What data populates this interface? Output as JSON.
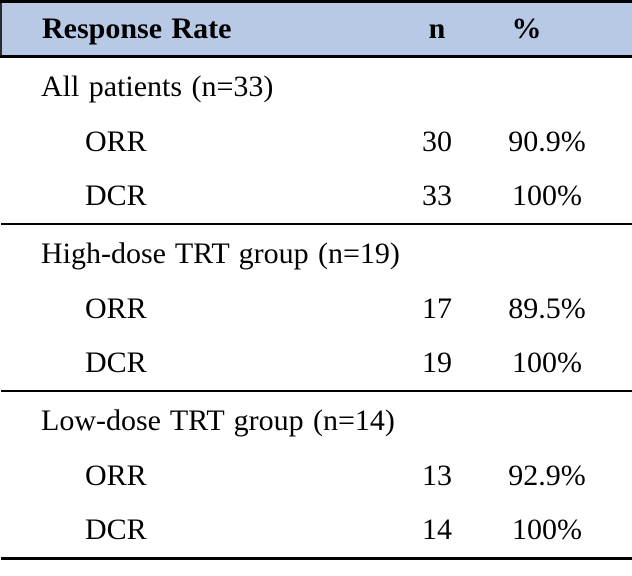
{
  "table": {
    "columns": [
      "Response Rate",
      "n",
      "%"
    ],
    "sections": [
      {
        "group": "All patients (n=33)",
        "rows": [
          {
            "label": "ORR",
            "n": "30",
            "pct": "90.9%"
          },
          {
            "label": "DCR",
            "n": "33",
            "pct": "100%"
          }
        ]
      },
      {
        "group": "High-dose TRT group (n=19)",
        "rows": [
          {
            "label": "ORR",
            "n": "17",
            "pct": "89.5%"
          },
          {
            "label": "DCR",
            "n": "19",
            "pct": "100%"
          }
        ]
      },
      {
        "group": "Low-dose TRT group (n=14)",
        "rows": [
          {
            "label": "ORR",
            "n": "13",
            "pct": "92.9%"
          },
          {
            "label": "DCR",
            "n": "14",
            "pct": "100%"
          }
        ]
      }
    ],
    "colors": {
      "header_bg": "#b7c9e5",
      "border": "#000000",
      "text": "#000000"
    }
  }
}
